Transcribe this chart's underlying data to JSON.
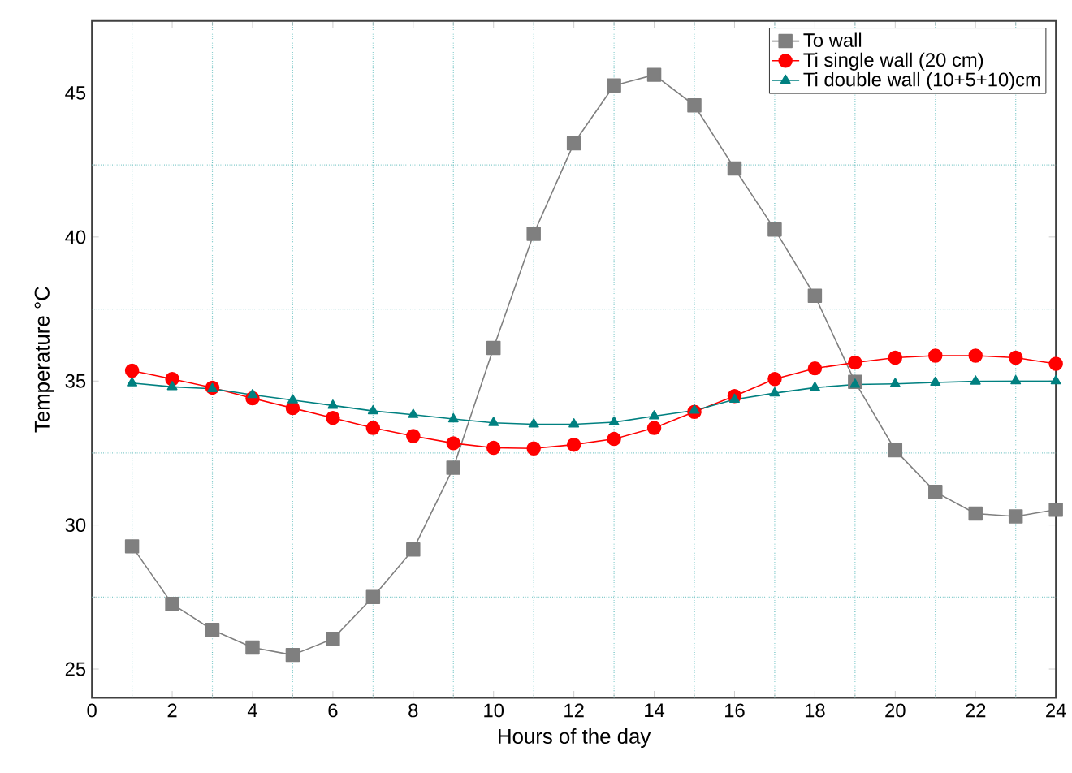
{
  "chart_data": {
    "type": "line",
    "xlabel": "Hours of the day",
    "ylabel": "Temperature °C",
    "x": [
      1,
      2,
      3,
      4,
      5,
      6,
      7,
      8,
      9,
      10,
      11,
      12,
      13,
      14,
      15,
      16,
      17,
      18,
      19,
      20,
      21,
      22,
      23,
      24
    ],
    "series": [
      {
        "name": "To wall",
        "color": "#7f7f7f",
        "marker": "square",
        "values": [
          29.26,
          27.26,
          26.36,
          25.75,
          25.49,
          26.05,
          27.5,
          29.15,
          31.99,
          36.15,
          40.11,
          43.25,
          45.26,
          45.63,
          44.57,
          42.38,
          40.26,
          37.96,
          34.97,
          32.6,
          31.15,
          30.4,
          30.3,
          30.53
        ]
      },
      {
        "name": "Ti single wall (20 cm)",
        "color": "#ff0000",
        "marker": "circle",
        "values": [
          35.36,
          35.07,
          34.77,
          34.4,
          34.06,
          33.72,
          33.37,
          33.09,
          32.84,
          32.68,
          32.66,
          32.79,
          32.99,
          33.37,
          33.93,
          34.48,
          35.07,
          35.44,
          35.64,
          35.81,
          35.88,
          35.88,
          35.81,
          35.6
        ]
      },
      {
        "name": "Ti double wall (10+5+10)cm",
        "color": "#008080",
        "marker": "triangle",
        "values": [
          34.93,
          34.8,
          34.73,
          34.52,
          34.34,
          34.15,
          33.96,
          33.83,
          33.68,
          33.55,
          33.5,
          33.5,
          33.57,
          33.78,
          33.98,
          34.36,
          34.58,
          34.77,
          34.88,
          34.9,
          34.95,
          34.99,
          35.0,
          35.0
        ]
      }
    ],
    "xlim": [
      0,
      24
    ],
    "xticks": [
      0,
      {
        "value": 1,
        "label": null
      },
      2,
      {
        "value": 3,
        "label": null
      },
      4,
      {
        "value": 5,
        "label": null
      },
      6,
      {
        "value": 7,
        "label": null
      },
      8,
      {
        "value": 9,
        "label": null
      },
      10,
      {
        "value": 11,
        "label": null
      },
      12,
      {
        "value": 13,
        "label": null
      },
      14,
      {
        "value": 15,
        "label": null
      },
      16,
      {
        "value": 17,
        "label": null
      },
      18,
      {
        "value": 19,
        "label": null
      },
      20,
      {
        "value": 21,
        "label": null
      },
      22,
      {
        "value": 23,
        "label": null
      },
      24
    ],
    "ylim": [
      24,
      47.5
    ],
    "yticks": [
      25,
      {
        "value": 27.5,
        "label": null
      },
      30,
      {
        "value": 32.5,
        "label": null
      },
      35,
      {
        "value": 37.5,
        "label": null
      },
      40,
      {
        "value": 42.5,
        "label": null
      },
      45
    ],
    "grid": true,
    "legend": "top right",
    "line_style": "solid"
  }
}
